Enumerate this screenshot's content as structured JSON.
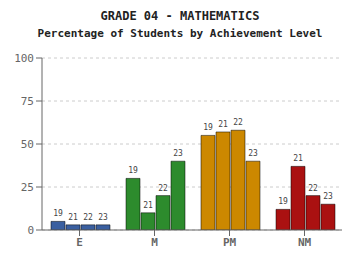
{
  "chart_data": {
    "type": "bar",
    "title": "GRADE 04 - MATHEMATICS",
    "subtitle": "Percentage of Students by Achievement Level",
    "categories": [
      "E",
      "M",
      "PM",
      "NM"
    ],
    "series": [
      {
        "name": "19",
        "values": [
          5,
          30,
          55,
          12
        ]
      },
      {
        "name": "21",
        "values": [
          3,
          10,
          57,
          37
        ]
      },
      {
        "name": "22",
        "values": [
          3,
          20,
          58,
          20
        ]
      },
      {
        "name": "23",
        "values": [
          3,
          40,
          40,
          15
        ]
      }
    ],
    "colors": [
      "#3a5fa0",
      "#2d8b2d",
      "#cc8800",
      "#aa1111"
    ],
    "ylim": [
      0,
      100
    ],
    "yticks": [
      0,
      25,
      50,
      75,
      100
    ],
    "grid": true
  }
}
